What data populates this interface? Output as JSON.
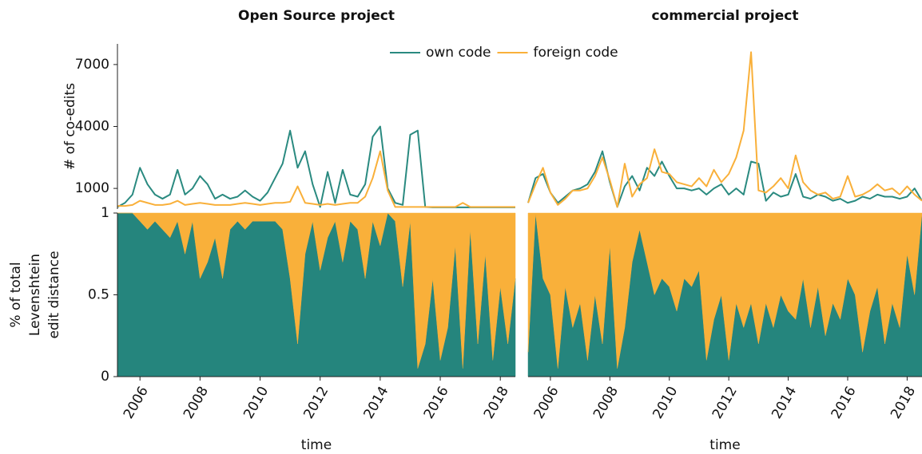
{
  "chart_data": [
    {
      "type": "line",
      "title": "Open Source project",
      "ylabel": "# of co-edits",
      "xlim": [
        2005.25,
        2018.5
      ],
      "ylim": [
        0,
        8000
      ],
      "yticks": [
        1000,
        4000,
        7000
      ],
      "legend": "upper center",
      "x": [
        2005.25,
        2005.5,
        2005.75,
        2006,
        2006.25,
        2006.5,
        2006.75,
        2007,
        2007.25,
        2007.5,
        2007.75,
        2008,
        2008.25,
        2008.5,
        2008.75,
        2009,
        2009.25,
        2009.5,
        2009.75,
        2010,
        2010.25,
        2010.5,
        2010.75,
        2011,
        2011.25,
        2011.5,
        2011.75,
        2012,
        2012.25,
        2012.5,
        2012.75,
        2013,
        2013.25,
        2013.5,
        2013.75,
        2014,
        2014.25,
        2014.5,
        2014.75,
        2015,
        2015.25,
        2015.5,
        2015.75,
        2016,
        2016.25,
        2016.5,
        2016.75,
        2017,
        2017.25,
        2017.5,
        2017.75,
        2018,
        2018.25,
        2018.5
      ],
      "series": [
        {
          "name": "own code",
          "color": "#2a8a80",
          "values": [
            100,
            300,
            700,
            2000,
            1200,
            700,
            500,
            700,
            1900,
            700,
            1000,
            1600,
            1200,
            500,
            700,
            500,
            600,
            900,
            600,
            400,
            800,
            1500,
            2200,
            3800,
            2000,
            2800,
            1200,
            100,
            1800,
            300,
            1900,
            700,
            600,
            1200,
            3500,
            4000,
            1000,
            300,
            200,
            3600,
            3800,
            100,
            80,
            80,
            80,
            80,
            80,
            80,
            80,
            80,
            80,
            80,
            80,
            80
          ]
        },
        {
          "name": "foreign code",
          "color": "#f9b03a",
          "values": [
            150,
            150,
            200,
            400,
            300,
            200,
            200,
            250,
            400,
            200,
            250,
            300,
            250,
            200,
            200,
            200,
            250,
            300,
            250,
            200,
            250,
            300,
            300,
            350,
            1100,
            300,
            250,
            200,
            250,
            200,
            250,
            300,
            300,
            600,
            1500,
            2800,
            900,
            100,
            100,
            100,
            100,
            100,
            100,
            100,
            100,
            100,
            300,
            100,
            100,
            100,
            100,
            100,
            100,
            100
          ]
        }
      ]
    },
    {
      "type": "line",
      "title": "commercial project",
      "xlim": [
        2005.25,
        2018.5
      ],
      "ylim": [
        0,
        8000
      ],
      "x": [
        2005.25,
        2005.5,
        2005.75,
        2006,
        2006.25,
        2006.5,
        2006.75,
        2007,
        2007.25,
        2007.5,
        2007.75,
        2008,
        2008.25,
        2008.5,
        2008.75,
        2009,
        2009.25,
        2009.5,
        2009.75,
        2010,
        2010.25,
        2010.5,
        2010.75,
        2011,
        2011.25,
        2011.5,
        2011.75,
        2012,
        2012.25,
        2012.5,
        2012.75,
        2013,
        2013.25,
        2013.5,
        2013.75,
        2014,
        2014.25,
        2014.5,
        2014.75,
        2015,
        2015.25,
        2015.5,
        2015.75,
        2016,
        2016.25,
        2016.5,
        2016.75,
        2017,
        2017.25,
        2017.5,
        2017.75,
        2018,
        2018.25,
        2018.5
      ],
      "series": [
        {
          "color": "#2a8a80",
          "values": [
            300,
            1500,
            1700,
            800,
            300,
            600,
            900,
            1000,
            1200,
            1800,
            2800,
            1300,
            100,
            1100,
            1600,
            900,
            2000,
            1600,
            2300,
            1600,
            1000,
            1000,
            900,
            1000,
            700,
            1000,
            1200,
            700,
            1000,
            700,
            2300,
            2200,
            400,
            800,
            600,
            700,
            1700,
            600,
            500,
            700,
            600,
            400,
            500,
            300,
            400,
            600,
            500,
            700,
            600,
            600,
            500,
            600,
            1000,
            400
          ]
        },
        {
          "color": "#f9b03a",
          "values": [
            300,
            1200,
            2000,
            800,
            200,
            500,
            900,
            900,
            1000,
            1600,
            2500,
            1400,
            100,
            2200,
            600,
            1200,
            1500,
            2900,
            1800,
            1700,
            1300,
            1200,
            1100,
            1500,
            1100,
            1900,
            1300,
            1700,
            2500,
            3800,
            7600,
            900,
            800,
            1100,
            1500,
            1000,
            2600,
            1300,
            900,
            700,
            800,
            500,
            600,
            1600,
            600,
            700,
            900,
            1200,
            900,
            1000,
            700,
            1100,
            700,
            400
          ]
        }
      ]
    },
    {
      "type": "area",
      "ylabel": [
        "% of total",
        "Levenshtein",
        "edit distance"
      ],
      "xlabel": "time",
      "xlim": [
        2005.25,
        2018.5
      ],
      "xticks": [
        2006,
        2008,
        2010,
        2012,
        2014,
        2016,
        2018
      ],
      "ylim": [
        0,
        1
      ],
      "yticks": [
        0,
        0.5,
        1
      ],
      "x": [
        2005.25,
        2005.5,
        2005.75,
        2006,
        2006.25,
        2006.5,
        2006.75,
        2007,
        2007.25,
        2007.5,
        2007.75,
        2008,
        2008.25,
        2008.5,
        2008.75,
        2009,
        2009.25,
        2009.5,
        2009.75,
        2010,
        2010.25,
        2010.5,
        2010.75,
        2011,
        2011.25,
        2011.5,
        2011.75,
        2012,
        2012.25,
        2012.5,
        2012.75,
        2013,
        2013.25,
        2013.5,
        2013.75,
        2014,
        2014.25,
        2014.5,
        2014.75,
        2015,
        2015.25,
        2015.5,
        2015.75,
        2016,
        2016.25,
        2016.5,
        2016.75,
        2017,
        2017.25,
        2017.5,
        2017.75,
        2018,
        2018.25,
        2018.5
      ],
      "series": [
        {
          "color": "#25857d",
          "values": [
            1,
            1,
            1,
            0.95,
            0.9,
            0.95,
            0.9,
            0.85,
            0.95,
            0.75,
            0.95,
            0.6,
            0.7,
            0.85,
            0.6,
            0.9,
            0.95,
            0.9,
            0.95,
            0.95,
            0.95,
            0.95,
            0.9,
            0.6,
            0.2,
            0.75,
            0.95,
            0.65,
            0.85,
            0.95,
            0.7,
            0.95,
            0.9,
            0.6,
            0.95,
            0.8,
            1,
            0.95,
            0.55,
            0.95,
            0.05,
            0.2,
            0.6,
            0.1,
            0.3,
            0.8,
            0.05,
            0.9,
            0.2,
            0.75,
            0.1,
            0.55,
            0.2,
            0.6
          ]
        },
        {
          "color": "#f9b03a",
          "values": [
            0,
            0,
            0,
            0.05,
            0.1,
            0.05,
            0.1,
            0.15,
            0.05,
            0.25,
            0.05,
            0.4,
            0.3,
            0.15,
            0.4,
            0.1,
            0.05,
            0.1,
            0.05,
            0.05,
            0.05,
            0.05,
            0.1,
            0.4,
            0.8,
            0.25,
            0.05,
            0.35,
            0.15,
            0.05,
            0.3,
            0.05,
            0.1,
            0.4,
            0.05,
            0.2,
            0,
            0.05,
            0.45,
            0.05,
            0.95,
            0.8,
            0.4,
            0.9,
            0.7,
            0.2,
            0.95,
            0.1,
            0.8,
            0.25,
            0.9,
            0.45,
            0.8,
            0.4
          ]
        }
      ]
    },
    {
      "type": "area",
      "xlabel": "time",
      "xlim": [
        2005.25,
        2018.5
      ],
      "xticks": [
        2006,
        2008,
        2010,
        2012,
        2014,
        2016,
        2018
      ],
      "ylim": [
        0,
        1
      ],
      "x": [
        2005.25,
        2005.5,
        2005.75,
        2006,
        2006.25,
        2006.5,
        2006.75,
        2007,
        2007.25,
        2007.5,
        2007.75,
        2008,
        2008.25,
        2008.5,
        2008.75,
        2009,
        2009.25,
        2009.5,
        2009.75,
        2010,
        2010.25,
        2010.5,
        2010.75,
        2011,
        2011.25,
        2011.5,
        2011.75,
        2012,
        2012.25,
        2012.5,
        2012.75,
        2013,
        2013.25,
        2013.5,
        2013.75,
        2014,
        2014.25,
        2014.5,
        2014.75,
        2015,
        2015.25,
        2015.5,
        2015.75,
        2016,
        2016.25,
        2016.5,
        2016.75,
        2017,
        2017.25,
        2017.5,
        2017.75,
        2018,
        2018.25,
        2018.5
      ],
      "series": [
        {
          "color": "#25857d",
          "values": [
            0.15,
            1,
            0.6,
            0.5,
            0.05,
            0.55,
            0.3,
            0.45,
            0.1,
            0.5,
            0.2,
            0.8,
            0.05,
            0.3,
            0.7,
            0.9,
            0.7,
            0.5,
            0.6,
            0.55,
            0.4,
            0.6,
            0.55,
            0.65,
            0.1,
            0.35,
            0.5,
            0.1,
            0.45,
            0.3,
            0.45,
            0.2,
            0.45,
            0.3,
            0.5,
            0.4,
            0.35,
            0.6,
            0.3,
            0.55,
            0.25,
            0.45,
            0.35,
            0.6,
            0.5,
            0.15,
            0.4,
            0.55,
            0.2,
            0.45,
            0.3,
            0.75,
            0.5,
            1
          ]
        },
        {
          "color": "#f9b03a",
          "values": [
            0.85,
            0,
            0.4,
            0.5,
            0.95,
            0.45,
            0.7,
            0.55,
            0.9,
            0.5,
            0.8,
            0.2,
            0.95,
            0.7,
            0.3,
            0.1,
            0.3,
            0.5,
            0.4,
            0.45,
            0.6,
            0.4,
            0.45,
            0.35,
            0.9,
            0.65,
            0.5,
            0.9,
            0.55,
            0.7,
            0.55,
            0.8,
            0.55,
            0.7,
            0.5,
            0.6,
            0.65,
            0.4,
            0.7,
            0.45,
            0.75,
            0.55,
            0.65,
            0.4,
            0.5,
            0.85,
            0.6,
            0.45,
            0.8,
            0.55,
            0.7,
            0.25,
            0.5,
            0
          ]
        }
      ]
    }
  ]
}
